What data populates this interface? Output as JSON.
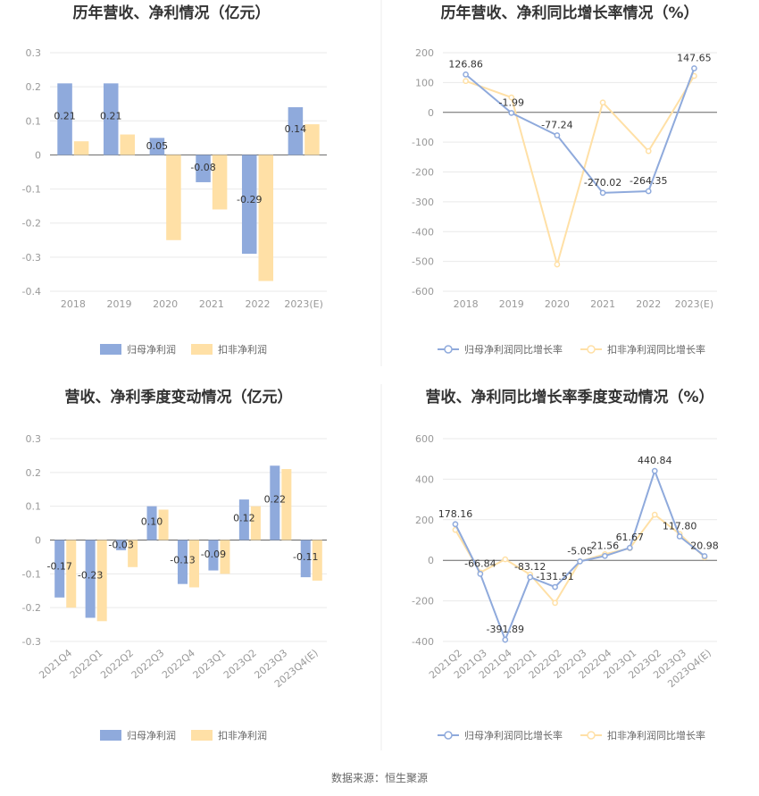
{
  "colors": {
    "series_a": "#8FAADC",
    "series_b": "#FFE0A6",
    "line_a": "#8FAADC",
    "line_b": "#FFE0A6"
  },
  "source_label": "数据来源：恒生聚源",
  "chart_data": [
    {
      "type": "bar",
      "title": "历年营收、净利情况（亿元）",
      "categories": [
        "2018",
        "2019",
        "2020",
        "2021",
        "2022",
        "2023(E)"
      ],
      "yticks": [
        "0.3",
        "0.2",
        "0.1",
        "0",
        "-0.1",
        "-0.2",
        "-0.3",
        "-0.4"
      ],
      "ylim": [
        -0.4,
        0.3
      ],
      "series": [
        {
          "name": "归母净利润",
          "values": [
            0.21,
            0.21,
            0.05,
            -0.08,
            -0.29,
            0.14
          ],
          "labels": [
            "0.21",
            "0.21",
            "0.05",
            "-0.08",
            "-0.29",
            "0.14"
          ]
        },
        {
          "name": "扣非净利润",
          "values": [
            0.04,
            0.06,
            -0.25,
            -0.16,
            -0.37,
            0.09
          ]
        }
      ],
      "legend": [
        "归母净利润",
        "扣非净利润"
      ]
    },
    {
      "type": "line",
      "title": "历年营收、净利同比增长率情况（%）",
      "categories": [
        "2018",
        "2019",
        "2020",
        "2021",
        "2022",
        "2023(E)"
      ],
      "yticks": [
        "200",
        "100",
        "0",
        "-100",
        "-200",
        "-300",
        "-400",
        "-500",
        "-600"
      ],
      "ylim": [
        -600,
        200
      ],
      "series": [
        {
          "name": "归母净利润同比增长率",
          "values": [
            126.86,
            -1.99,
            -77.24,
            -270.02,
            -264.35,
            147.65
          ],
          "labels": [
            "126.86",
            "-1.99",
            "-77.24",
            "-270.02",
            "-264.35",
            "147.65"
          ]
        },
        {
          "name": "扣非净利润同比增长率",
          "values": [
            105,
            50,
            -510,
            33,
            -130,
            122
          ]
        }
      ],
      "legend": [
        "归母净利润同比增长率",
        "扣非净利润同比增长率"
      ]
    },
    {
      "type": "bar",
      "title": "营收、净利季度变动情况（亿元）",
      "categories": [
        "2021Q4",
        "2022Q1",
        "2022Q2",
        "2022Q3",
        "2022Q4",
        "2023Q1",
        "2023Q2",
        "2023Q3",
        "2023Q4(E)"
      ],
      "yticks": [
        "0.3",
        "0.2",
        "0.1",
        "0",
        "-0.1",
        "-0.2",
        "-0.3"
      ],
      "ylim": [
        -0.3,
        0.3
      ],
      "series": [
        {
          "name": "归母净利润",
          "values": [
            -0.17,
            -0.23,
            -0.03,
            0.1,
            -0.13,
            -0.09,
            0.12,
            0.22,
            -0.11
          ],
          "labels": [
            "-0.17",
            "-0.23",
            "-0.03",
            "0.10",
            "-0.13",
            "-0.09",
            "0.12",
            "0.22",
            "-0.11"
          ]
        },
        {
          "name": "扣非净利润",
          "values": [
            -0.2,
            -0.24,
            -0.08,
            0.09,
            -0.14,
            -0.1,
            0.1,
            0.21,
            -0.12
          ]
        }
      ],
      "legend": [
        "归母净利润",
        "扣非净利润"
      ]
    },
    {
      "type": "line",
      "title": "营收、净利同比增长率季度变动情况（%）",
      "categories": [
        "2021Q2",
        "2021Q3",
        "2021Q4",
        "2022Q1",
        "2022Q2",
        "2022Q3",
        "2022Q4",
        "2023Q1",
        "2023Q2",
        "2023Q3",
        "2023Q4(E)"
      ],
      "yticks": [
        "600",
        "400",
        "200",
        "0",
        "-200",
        "-400"
      ],
      "ylim": [
        -400,
        600
      ],
      "series": [
        {
          "name": "归母净利润同比增长率",
          "values": [
            178.16,
            -66.84,
            -391.89,
            -83.12,
            -131.51,
            -5.05,
            21.56,
            61.67,
            440.84,
            117.8,
            20.98
          ],
          "labels": [
            "178.16",
            "-66.84",
            "-391.89",
            "-83.12",
            "-131.51",
            "-5.05",
            "21.56",
            "61.67",
            "440.84",
            "117.80",
            "20.98"
          ]
        },
        {
          "name": "扣非净利润同比增长率",
          "values": [
            150,
            -60,
            5,
            -70,
            -210,
            -5,
            30,
            60,
            225,
            130,
            15
          ]
        }
      ],
      "legend": [
        "归母净利润同比增长率",
        "扣非净利润同比增长率"
      ]
    }
  ]
}
